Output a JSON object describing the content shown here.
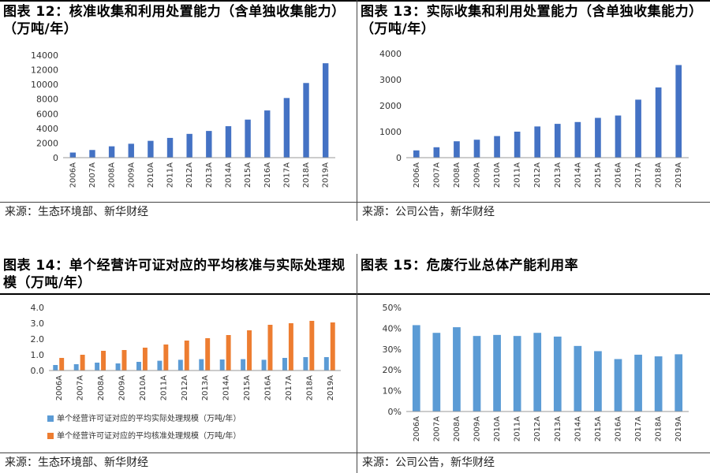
{
  "panels": [
    {
      "title": "图表 12：核准收集和利用处置能力（含单独收集能力）（万吨/年）",
      "source": "来源：生态环境部、新华财经"
    },
    {
      "title": "图表 13：实际收集和利用处置能力（含单独收集能力）（万吨/年）",
      "source": "来源：公司公告，新华财经"
    },
    {
      "title": "图表 14：单个经营许可证对应的平均核准与实际处理规模（万吨/年）",
      "source": "来源：生态环境部、新华财经"
    },
    {
      "title": "图表 15：危废行业总体产能利用率",
      "source": "来源：公司公告，新华财经"
    }
  ],
  "colors": {
    "blue": "#4472C4",
    "lightblue": "#5B9BD5",
    "orange": "#ED7D31"
  },
  "chart_data": [
    {
      "type": "bar",
      "categories": [
        "2006A",
        "2007A",
        "2008A",
        "2009A",
        "2010A",
        "2011A",
        "2012A",
        "2013A",
        "2014A",
        "2015A",
        "2016A",
        "2017A",
        "2018A",
        "2019A"
      ],
      "values": [
        700,
        1050,
        1550,
        1900,
        2300,
        2700,
        3250,
        3650,
        4300,
        5200,
        6450,
        8150,
        10200,
        12900
      ],
      "ylim": [
        0,
        14000
      ],
      "yticks": [
        "0",
        "2000",
        "4000",
        "6000",
        "8000",
        "10000",
        "12000",
        "14000"
      ],
      "grid": false
    },
    {
      "type": "bar",
      "categories": [
        "2006A",
        "2007A",
        "2008A",
        "2009A",
        "2010A",
        "2011A",
        "2012A",
        "2013A",
        "2014A",
        "2015A",
        "2016A",
        "2017A",
        "2018A",
        "2019A"
      ],
      "values": [
        280,
        400,
        630,
        690,
        830,
        1000,
        1200,
        1300,
        1370,
        1530,
        1620,
        2230,
        2700,
        3560
      ],
      "ylim": [
        0,
        4000
      ],
      "yticks": [
        "0",
        "1000",
        "2000",
        "3000",
        "4000"
      ],
      "grid": false
    },
    {
      "type": "bar",
      "categories": [
        "2006A",
        "2007A",
        "2008A",
        "2009A",
        "2010A",
        "2011A",
        "2012A",
        "2013A",
        "2014A",
        "2015A",
        "2016A",
        "2017A",
        "2018A",
        "2019A"
      ],
      "series": [
        {
          "name": "单个经营许可证对应的平均实际处理规模（万吨/年）",
          "values": [
            0.35,
            0.4,
            0.5,
            0.45,
            0.55,
            0.62,
            0.68,
            0.72,
            0.7,
            0.72,
            0.68,
            0.8,
            0.85,
            0.85
          ]
        },
        {
          "name": "单个经营许可证对应的平均核准处理规模（万吨/年）",
          "values": [
            0.8,
            1.0,
            1.25,
            1.3,
            1.45,
            1.65,
            1.9,
            2.05,
            2.25,
            2.55,
            2.9,
            3.0,
            3.15,
            3.05
          ]
        }
      ],
      "ylim": [
        0,
        4.0
      ],
      "yticks": [
        "0.0",
        "1.0",
        "2.0",
        "3.0",
        "4.0"
      ],
      "legend": "bottom",
      "grid": false
    },
    {
      "type": "bar",
      "categories": [
        "2006A",
        "2007A",
        "2008A",
        "2009A",
        "2010A",
        "2011A",
        "2012A",
        "2013A",
        "2014A",
        "2015A",
        "2016A",
        "2017A",
        "2018A",
        "2019A"
      ],
      "values": [
        41.5,
        37.8,
        40.5,
        36.3,
        36.8,
        36.3,
        37.8,
        36.0,
        31.5,
        29.0,
        25.2,
        27.3,
        26.5,
        27.5
      ],
      "ylim": [
        0,
        50
      ],
      "yticks": [
        "0%",
        "10%",
        "20%",
        "30%",
        "40%",
        "50%"
      ],
      "grid": false
    }
  ]
}
